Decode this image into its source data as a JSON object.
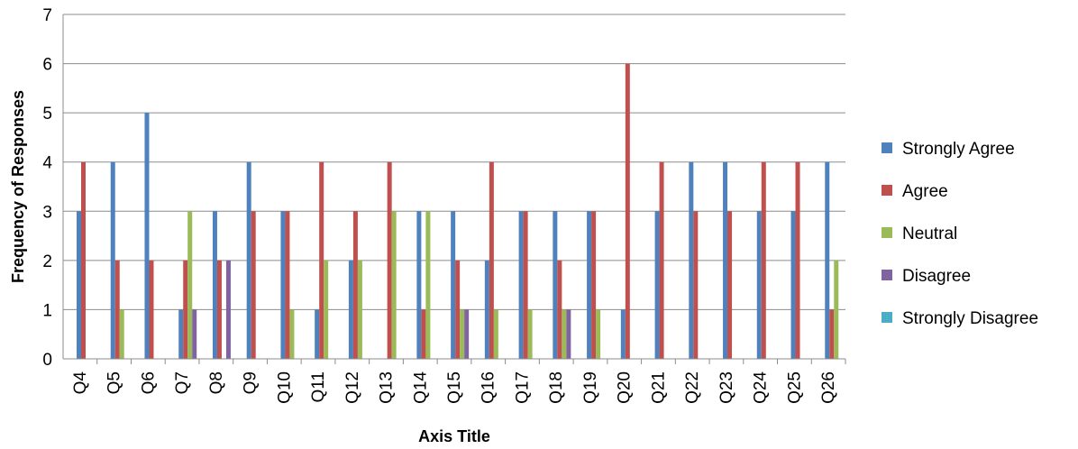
{
  "chart_data": {
    "type": "bar",
    "title": "",
    "xlabel": "Axis Title",
    "ylabel": "Frequency of Responses",
    "ylim": [
      0,
      7
    ],
    "yticks": [
      0,
      1,
      2,
      3,
      4,
      5,
      6,
      7
    ],
    "grid": true,
    "legend_position": "right",
    "categories": [
      "Q4",
      "Q5",
      "Q6",
      "Q7",
      "Q8",
      "Q9",
      "Q10",
      "Q11",
      "Q12",
      "Q13",
      "Q14",
      "Q15",
      "Q16",
      "Q17",
      "Q18",
      "Q19",
      "Q20",
      "Q21",
      "Q22",
      "Q23",
      "Q24",
      "Q25",
      "Q26"
    ],
    "series": [
      {
        "name": "Strongly Agree",
        "color": "#4F81BD",
        "values": [
          3,
          4,
          5,
          1,
          3,
          4,
          3,
          1,
          2,
          0,
          3,
          3,
          2,
          3,
          3,
          3,
          1,
          3,
          4,
          4,
          3,
          3,
          4
        ]
      },
      {
        "name": "Agree",
        "color": "#C0504D",
        "values": [
          4,
          2,
          2,
          2,
          2,
          3,
          3,
          4,
          3,
          4,
          1,
          2,
          4,
          3,
          2,
          3,
          6,
          4,
          3,
          3,
          4,
          4,
          1
        ]
      },
      {
        "name": "Neutral",
        "color": "#9BBB59",
        "values": [
          0,
          1,
          0,
          3,
          0,
          0,
          1,
          2,
          2,
          3,
          3,
          1,
          1,
          1,
          1,
          1,
          0,
          0,
          0,
          0,
          0,
          0,
          2
        ]
      },
      {
        "name": "Disagree",
        "color": "#8064A2",
        "values": [
          0,
          0,
          0,
          1,
          2,
          0,
          0,
          0,
          0,
          0,
          0,
          1,
          0,
          0,
          1,
          0,
          0,
          0,
          0,
          0,
          0,
          0,
          0
        ]
      },
      {
        "name": "Strongly Disagree",
        "color": "#4BACC6",
        "values": [
          0,
          0,
          0,
          0,
          0,
          0,
          0,
          0,
          0,
          0,
          0,
          0,
          0,
          0,
          0,
          0,
          0,
          0,
          0,
          0,
          0,
          0,
          0
        ]
      }
    ]
  }
}
